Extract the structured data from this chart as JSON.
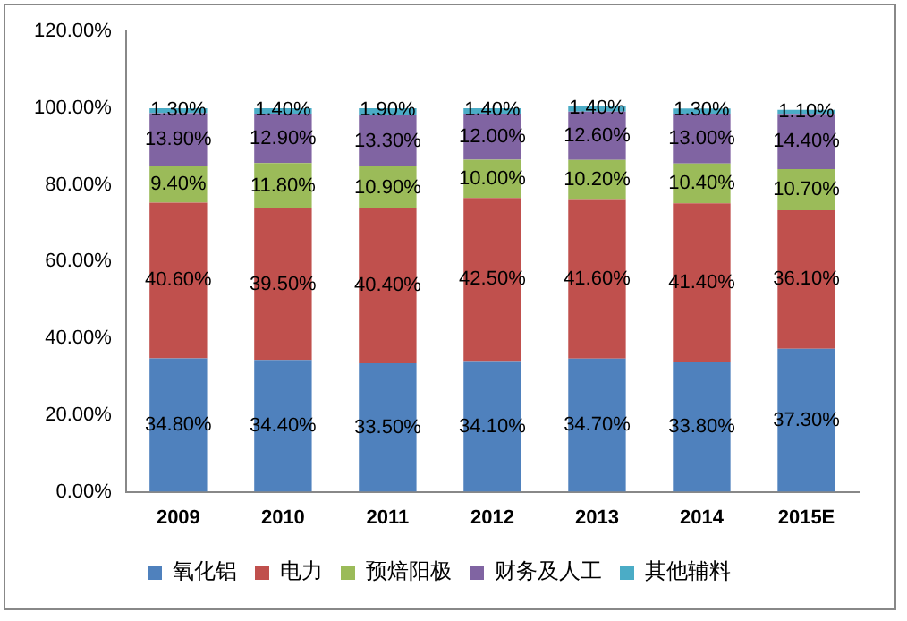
{
  "chart_data": {
    "type": "bar",
    "stacked": true,
    "categories": [
      "2009",
      "2010",
      "2011",
      "2012",
      "2013",
      "2014",
      "2015E"
    ],
    "ylim": [
      0,
      120
    ],
    "yticks": [
      {
        "value": 0,
        "label": "0.00%"
      },
      {
        "value": 20,
        "label": "20.00%"
      },
      {
        "value": 40,
        "label": "40.00%"
      },
      {
        "value": 60,
        "label": "60.00%"
      },
      {
        "value": 80,
        "label": "80.00%"
      },
      {
        "value": 100,
        "label": "100.00%"
      },
      {
        "value": 120,
        "label": "120.00%"
      }
    ],
    "grid": false,
    "legend": "bottom",
    "series": [
      {
        "name": "氧化铝",
        "color": "#4f81bd",
        "values": [
          34.8,
          34.4,
          33.5,
          34.1,
          34.7,
          33.8,
          37.3
        ],
        "value_labels": [
          "34.80%",
          "34.40%",
          "33.50%",
          "34.10%",
          "34.70%",
          "33.80%",
          "37.30%"
        ]
      },
      {
        "name": "电力",
        "color": "#c0504d",
        "values": [
          40.6,
          39.5,
          40.4,
          42.5,
          41.6,
          41.4,
          36.1
        ],
        "value_labels": [
          "40.60%",
          "39.50%",
          "40.40%",
          "42.50%",
          "41.60%",
          "41.40%",
          "36.10%"
        ]
      },
      {
        "name": "预焙阳极",
        "color": "#9bbb59",
        "values": [
          9.4,
          11.8,
          10.9,
          10.0,
          10.2,
          10.4,
          10.7
        ],
        "value_labels": [
          "9.40%",
          "11.80%",
          "10.90%",
          "10.00%",
          "10.20%",
          "10.40%",
          "10.70%"
        ]
      },
      {
        "name": "财务及人工",
        "color": "#8064a2",
        "values": [
          13.9,
          12.9,
          13.3,
          12.0,
          12.6,
          13.0,
          14.4
        ],
        "value_labels": [
          "13.90%",
          "12.90%",
          "13.30%",
          "12.00%",
          "12.60%",
          "13.00%",
          "14.40%"
        ]
      },
      {
        "name": "其他辅料",
        "color": "#4bacc6",
        "values": [
          1.3,
          1.4,
          1.9,
          1.4,
          1.4,
          1.3,
          1.1
        ],
        "value_labels": [
          "1.30%",
          "1.40%",
          "1.90%",
          "1.40%",
          "1.40%",
          "1.30%",
          "1.10%"
        ]
      }
    ]
  }
}
